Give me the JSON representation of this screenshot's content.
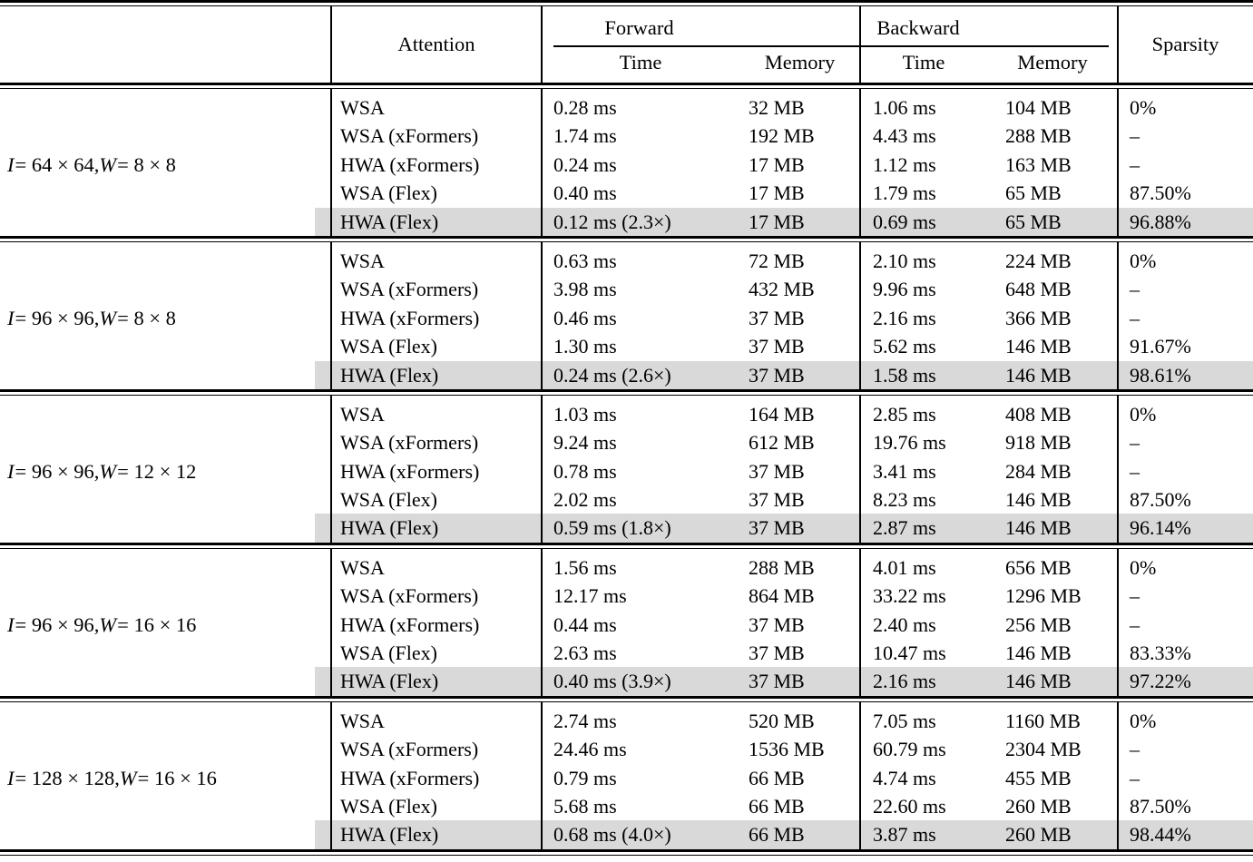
{
  "table": {
    "headers": {
      "attention": "Attention",
      "forward": "Forward",
      "backward": "Backward",
      "time": "Time",
      "memory": "Memory",
      "sparsity": "Sparsity"
    },
    "highlight_color": "#d9d9d9",
    "groups": [
      {
        "label_parts": [
          {
            "text": "I",
            "italic": true
          },
          {
            "text": " = 64 × 64, ",
            "italic": false
          },
          {
            "text": "W",
            "italic": true
          },
          {
            "text": " = 8 × 8",
            "italic": false
          }
        ],
        "rows": [
          {
            "attention": "WSA",
            "fwd_time": "0.28 ms",
            "fwd_mem": "32 MB",
            "bwd_time": "1.06 ms",
            "bwd_mem": "104 MB",
            "sparsity": "0%",
            "highlight": false
          },
          {
            "attention": "WSA (xFormers)",
            "fwd_time": "1.74 ms",
            "fwd_mem": "192 MB",
            "bwd_time": "4.43 ms",
            "bwd_mem": "288 MB",
            "sparsity": "–",
            "highlight": false
          },
          {
            "attention": "HWA (xFormers)",
            "fwd_time": "0.24 ms",
            "fwd_mem": "17 MB",
            "bwd_time": "1.12 ms",
            "bwd_mem": "163 MB",
            "sparsity": "–",
            "highlight": false
          },
          {
            "attention": "WSA (Flex)",
            "fwd_time": "0.40 ms",
            "fwd_mem": "17 MB",
            "bwd_time": "1.79 ms",
            "bwd_mem": "65 MB",
            "sparsity": "87.50%",
            "highlight": false
          },
          {
            "attention": "HWA (Flex)",
            "fwd_time": "0.12 ms (2.3×)",
            "fwd_mem": "17 MB",
            "bwd_time": "0.69 ms",
            "bwd_mem": "65 MB",
            "sparsity": "96.88%",
            "highlight": true
          }
        ]
      },
      {
        "label_parts": [
          {
            "text": "I",
            "italic": true
          },
          {
            "text": " = 96 × 96, ",
            "italic": false
          },
          {
            "text": "W",
            "italic": true
          },
          {
            "text": " = 8 × 8",
            "italic": false
          }
        ],
        "rows": [
          {
            "attention": "WSA",
            "fwd_time": "0.63 ms",
            "fwd_mem": "72 MB",
            "bwd_time": "2.10 ms",
            "bwd_mem": "224 MB",
            "sparsity": "0%",
            "highlight": false
          },
          {
            "attention": "WSA (xFormers)",
            "fwd_time": "3.98 ms",
            "fwd_mem": "432 MB",
            "bwd_time": "9.96 ms",
            "bwd_mem": "648 MB",
            "sparsity": "–",
            "highlight": false
          },
          {
            "attention": "HWA (xFormers)",
            "fwd_time": "0.46 ms",
            "fwd_mem": "37 MB",
            "bwd_time": "2.16 ms",
            "bwd_mem": "366 MB",
            "sparsity": "–",
            "highlight": false
          },
          {
            "attention": "WSA (Flex)",
            "fwd_time": "1.30 ms",
            "fwd_mem": "37 MB",
            "bwd_time": "5.62 ms",
            "bwd_mem": "146 MB",
            "sparsity": "91.67%",
            "highlight": false
          },
          {
            "attention": "HWA (Flex)",
            "fwd_time": "0.24 ms (2.6×)",
            "fwd_mem": "37 MB",
            "bwd_time": "1.58 ms",
            "bwd_mem": "146 MB",
            "sparsity": "98.61%",
            "highlight": true
          }
        ]
      },
      {
        "label_parts": [
          {
            "text": "I",
            "italic": true
          },
          {
            "text": " = 96 × 96, ",
            "italic": false
          },
          {
            "text": "W",
            "italic": true
          },
          {
            "text": " = 12 × 12",
            "italic": false
          }
        ],
        "rows": [
          {
            "attention": "WSA",
            "fwd_time": "1.03 ms",
            "fwd_mem": "164 MB",
            "bwd_time": "2.85 ms",
            "bwd_mem": "408 MB",
            "sparsity": "0%",
            "highlight": false
          },
          {
            "attention": "WSA (xFormers)",
            "fwd_time": "9.24 ms",
            "fwd_mem": "612 MB",
            "bwd_time": "19.76 ms",
            "bwd_mem": "918 MB",
            "sparsity": "–",
            "highlight": false
          },
          {
            "attention": "HWA (xFormers)",
            "fwd_time": "0.78 ms",
            "fwd_mem": "37 MB",
            "bwd_time": "3.41 ms",
            "bwd_mem": "284 MB",
            "sparsity": "–",
            "highlight": false
          },
          {
            "attention": "WSA (Flex)",
            "fwd_time": "2.02 ms",
            "fwd_mem": "37 MB",
            "bwd_time": "8.23 ms",
            "bwd_mem": "146 MB",
            "sparsity": "87.50%",
            "highlight": false
          },
          {
            "attention": "HWA (Flex)",
            "fwd_time": "0.59 ms (1.8×)",
            "fwd_mem": "37 MB",
            "bwd_time": "2.87 ms",
            "bwd_mem": "146 MB",
            "sparsity": "96.14%",
            "highlight": true
          }
        ]
      },
      {
        "label_parts": [
          {
            "text": "I",
            "italic": true
          },
          {
            "text": " = 96 × 96, ",
            "italic": false
          },
          {
            "text": "W",
            "italic": true
          },
          {
            "text": " = 16 × 16",
            "italic": false
          }
        ],
        "rows": [
          {
            "attention": "WSA",
            "fwd_time": "1.56 ms",
            "fwd_mem": "288 MB",
            "bwd_time": "4.01 ms",
            "bwd_mem": "656 MB",
            "sparsity": "0%",
            "highlight": false
          },
          {
            "attention": "WSA (xFormers)",
            "fwd_time": "12.17 ms",
            "fwd_mem": "864 MB",
            "bwd_time": "33.22 ms",
            "bwd_mem": "1296 MB",
            "sparsity": "–",
            "highlight": false
          },
          {
            "attention": "HWA (xFormers)",
            "fwd_time": "0.44 ms",
            "fwd_mem": "37 MB",
            "bwd_time": "2.40 ms",
            "bwd_mem": "256 MB",
            "sparsity": "–",
            "highlight": false
          },
          {
            "attention": "WSA (Flex)",
            "fwd_time": "2.63 ms",
            "fwd_mem": "37 MB",
            "bwd_time": "10.47 ms",
            "bwd_mem": "146 MB",
            "sparsity": "83.33%",
            "highlight": false
          },
          {
            "attention": "HWA (Flex)",
            "fwd_time": "0.40 ms (3.9×)",
            "fwd_mem": "37 MB",
            "bwd_time": "2.16 ms",
            "bwd_mem": "146 MB",
            "sparsity": "97.22%",
            "highlight": true
          }
        ]
      },
      {
        "label_parts": [
          {
            "text": "I",
            "italic": true
          },
          {
            "text": " = 128 × 128, ",
            "italic": false
          },
          {
            "text": "W",
            "italic": true
          },
          {
            "text": " = 16 × 16",
            "italic": false
          }
        ],
        "rows": [
          {
            "attention": "WSA",
            "fwd_time": "2.74 ms",
            "fwd_mem": "520 MB",
            "bwd_time": "7.05 ms",
            "bwd_mem": "1160 MB",
            "sparsity": "0%",
            "highlight": false
          },
          {
            "attention": "WSA (xFormers)",
            "fwd_time": "24.46 ms",
            "fwd_mem": "1536 MB",
            "bwd_time": "60.79 ms",
            "bwd_mem": "2304 MB",
            "sparsity": "–",
            "highlight": false
          },
          {
            "attention": "HWA (xFormers)",
            "fwd_time": "0.79 ms",
            "fwd_mem": "66 MB",
            "bwd_time": "4.74 ms",
            "bwd_mem": "455 MB",
            "sparsity": "–",
            "highlight": false
          },
          {
            "attention": "WSA (Flex)",
            "fwd_time": "5.68 ms",
            "fwd_mem": "66 MB",
            "bwd_time": "22.60 ms",
            "bwd_mem": "260 MB",
            "sparsity": "87.50%",
            "highlight": false
          },
          {
            "attention": "HWA (Flex)",
            "fwd_time": "0.68 ms (4.0×)",
            "fwd_mem": "66 MB",
            "bwd_time": "3.87 ms",
            "bwd_mem": "260 MB",
            "sparsity": "98.44%",
            "highlight": true
          }
        ]
      }
    ]
  }
}
